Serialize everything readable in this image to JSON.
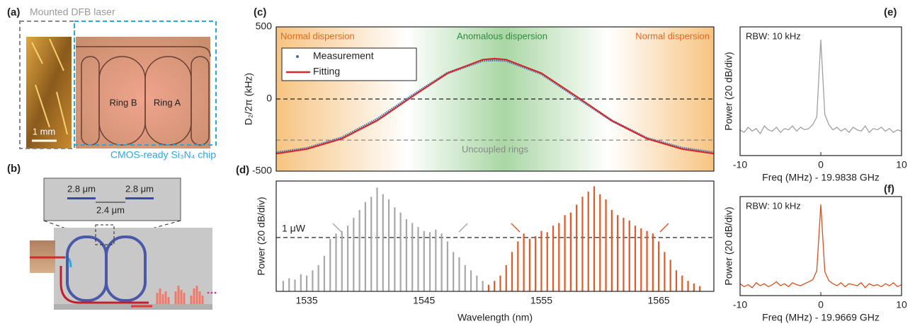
{
  "figure": {
    "a": {
      "label": "(a)",
      "laser": "Mounted DFB laser",
      "ring_b": "Ring B",
      "ring_a": "Ring A",
      "scale": "1 mm",
      "chip": "CMOS-ready Si₃N₄ chip"
    },
    "b": {
      "label": "(b)",
      "width_left": "2.8 μm",
      "width_right": "2.8 μm",
      "gap": "2.4 μm"
    }
  },
  "chart_data": [
    {
      "type": "line",
      "label": "(c)",
      "ylabel": "D₂/2π (kHz)",
      "regions": [
        "Normal dispersion",
        "Anomalous dispersion",
        "Normal dispersion"
      ],
      "x": [
        1532.4,
        1535,
        1538,
        1541,
        1544,
        1547,
        1550,
        1551,
        1552,
        1555,
        1558,
        1561,
        1564,
        1567,
        1569.7
      ],
      "series": [
        {
          "name": "Measurement",
          "color": "#3b6fb6",
          "marker": "dot",
          "values": [
            -372,
            -342,
            -268,
            -140,
            25,
            180,
            266,
            270,
            266,
            175,
            12,
            -150,
            -272,
            -340,
            -372
          ]
        },
        {
          "name": "Fitting",
          "color": "#d42a2a",
          "marker": "line",
          "values": [
            -379,
            -347,
            -275,
            -150,
            17,
            179,
            273,
            280,
            273,
            179,
            17,
            -150,
            -275,
            -347,
            -379
          ]
        }
      ],
      "hlines": [
        {
          "value": 0,
          "color": "#222222"
        },
        {
          "value": -285,
          "color": "#888888",
          "label": "Uncoupled rings"
        }
      ],
      "xlim": [
        1532.4,
        1569.7
      ],
      "ylim": [
        -500,
        500
      ],
      "yticks": [
        -500,
        0,
        500
      ]
    },
    {
      "type": "stem",
      "label": "(d)",
      "xlabel": "Wavelength (nm)",
      "ylabel": "Power (20 dB/div)",
      "series": [
        {
          "color": "#a8a8a8",
          "x": [
            1533,
            1533.5,
            1534,
            1534.5,
            1535,
            1535.5,
            1536,
            1536.5,
            1537,
            1537.5,
            1538,
            1538.5,
            1539,
            1539.5,
            1540,
            1540.5,
            1541,
            1541.5,
            1542,
            1542.5,
            1543,
            1543.5,
            1544,
            1544.5,
            1545,
            1545.5,
            1546,
            1546.5,
            1547,
            1547.5,
            1548,
            1548.5,
            1549,
            1549.5,
            1550
          ],
          "values": [
            8,
            10,
            9,
            13,
            12,
            16,
            20,
            27,
            40,
            44,
            46,
            50,
            56,
            62,
            68,
            72,
            79,
            74,
            70,
            64,
            60,
            55,
            52,
            49,
            46,
            45,
            47,
            44,
            38,
            30,
            26,
            20,
            16,
            12,
            8
          ]
        },
        {
          "color": "#e05a26",
          "x": [
            1550.5,
            1551,
            1551.5,
            1552,
            1552.5,
            1553,
            1553.5,
            1554,
            1554.5,
            1555,
            1555.5,
            1556,
            1556.5,
            1557,
            1557.5,
            1558,
            1558.5,
            1559,
            1559.5,
            1560,
            1560.5,
            1561,
            1561.5,
            1562,
            1562.5,
            1563,
            1563.5,
            1564,
            1564.5,
            1565,
            1565.5,
            1566,
            1566.5,
            1567,
            1567.5,
            1568,
            1568.5
          ],
          "values": [
            5,
            8,
            12,
            20,
            30,
            38,
            44,
            40,
            42,
            46,
            45,
            50,
            52,
            58,
            60,
            66,
            72,
            76,
            80,
            74,
            70,
            62,
            58,
            56,
            54,
            50,
            48,
            46,
            44,
            38,
            30,
            24,
            16,
            12,
            8,
            6,
            4
          ]
        }
      ],
      "hlines": [
        {
          "value": 41,
          "color": "#222222",
          "label": "1 μW"
        }
      ],
      "xlim": [
        1532.4,
        1569.7
      ],
      "ylim": [
        0,
        84
      ],
      "xticks": [
        1535,
        1545,
        1555,
        1565
      ]
    },
    {
      "type": "line",
      "label": "(e)",
      "annotation": "RBW: 10 kHz",
      "xlabel": "Freq (MHz) - 19.9838 GHz",
      "ylabel": "Power (20 dB/div)",
      "color": "#a0a0a0",
      "x": [
        -10,
        -9.5,
        -9,
        -8.5,
        -8,
        -7.5,
        -7,
        -6.5,
        -6,
        -5.5,
        -5,
        -4.5,
        -4,
        -3.5,
        -3,
        -2.5,
        -2,
        -1.5,
        -1,
        -0.5,
        0,
        0.5,
        1,
        1.5,
        2,
        2.5,
        3,
        3.5,
        4,
        4.5,
        5,
        5.5,
        6,
        6.5,
        7,
        7.5,
        8,
        8.5,
        9,
        9.5,
        10
      ],
      "values": [
        20,
        18,
        22,
        19,
        21,
        17,
        23,
        20,
        19,
        22,
        18,
        21,
        20,
        23,
        19,
        22,
        20,
        21,
        24,
        30,
        90,
        32,
        24,
        20,
        22,
        19,
        21,
        18,
        22,
        20,
        19,
        23,
        18,
        21,
        20,
        22,
        19,
        21,
        18,
        20,
        19
      ],
      "xlim": [
        -10,
        10
      ],
      "xticks": [
        -10,
        0,
        10
      ],
      "ylim": [
        0,
        100
      ]
    },
    {
      "type": "line",
      "label": "(f)",
      "annotation": "RBW: 10 kHz",
      "xlabel": "Freq (MHz) - 19.9669 GHz",
      "ylabel": "Power (20 dB/div)",
      "color": "#d2531e",
      "x": [
        -10,
        -9.5,
        -9,
        -8.5,
        -8,
        -7.5,
        -7,
        -6.5,
        -6,
        -5.5,
        -5,
        -4.5,
        -4,
        -3.5,
        -3,
        -2.5,
        -2,
        -1.5,
        -1,
        -0.5,
        0,
        0.5,
        1,
        1.5,
        2,
        2.5,
        3,
        3.5,
        4,
        4.5,
        5,
        5.5,
        6,
        6.5,
        7,
        7.5,
        8,
        8.5,
        9,
        9.5,
        10
      ],
      "values": [
        12,
        9,
        11,
        8,
        13,
        10,
        12,
        9,
        11,
        14,
        10,
        12,
        9,
        13,
        11,
        10,
        12,
        14,
        16,
        25,
        92,
        24,
        15,
        12,
        10,
        13,
        9,
        12,
        11,
        10,
        13,
        8,
        12,
        10,
        11,
        9,
        12,
        10,
        13,
        9,
        11
      ],
      "xlim": [
        -10,
        10
      ],
      "xticks": [
        -10,
        0,
        10
      ],
      "ylim": [
        0,
        100
      ]
    }
  ]
}
